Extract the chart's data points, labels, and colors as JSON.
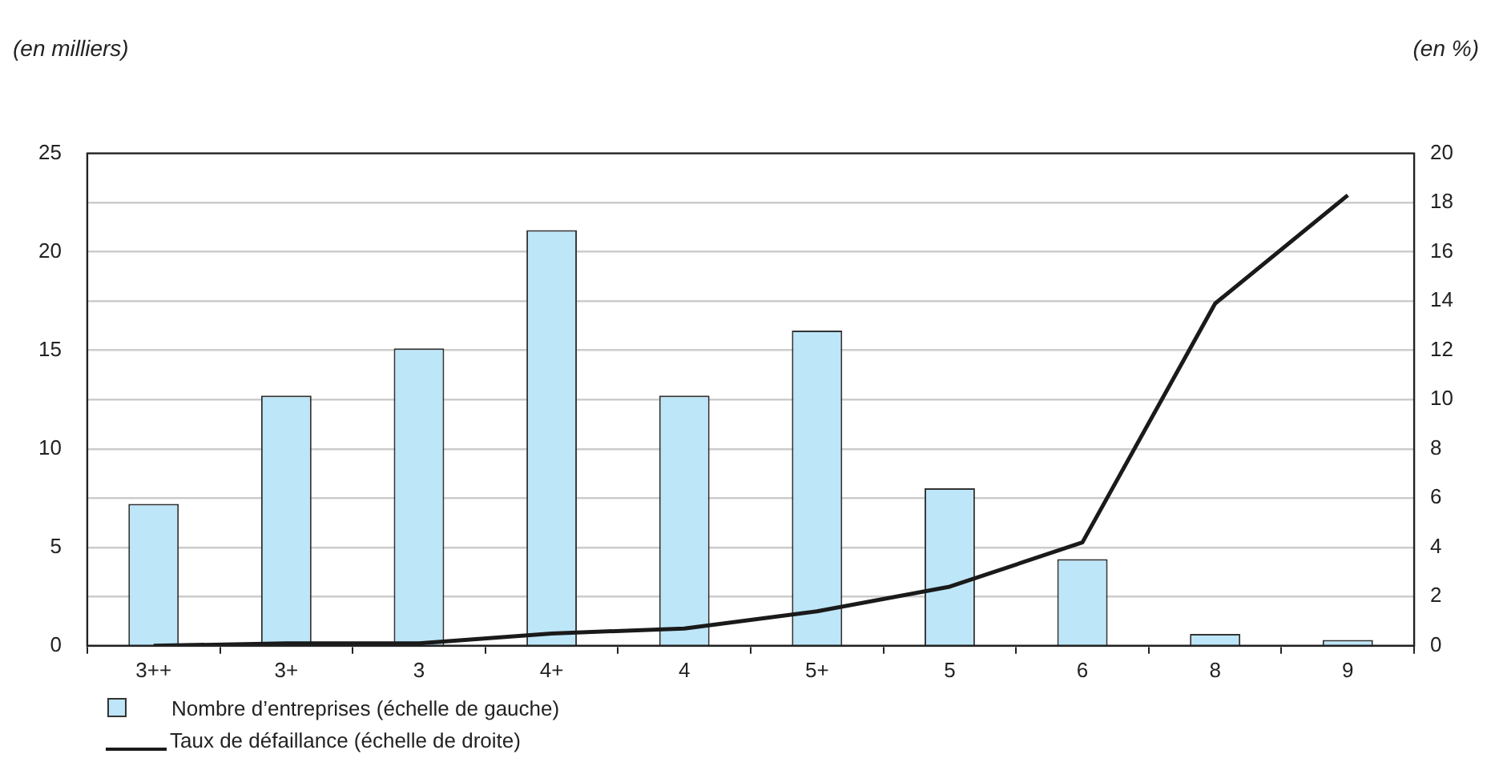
{
  "chart_data": {
    "type": "bar",
    "ylabel": "(en milliers)",
    "y2label": "(en %)",
    "categories": [
      "3++",
      "3+",
      "3",
      "4+",
      "4",
      "5+",
      "5",
      "6",
      "8",
      "9"
    ],
    "series": [
      {
        "name": "Nombre d’entreprises (échelle de gauche)",
        "color": "#bde6f8",
        "values": [
          7.2,
          12.7,
          15.1,
          21.1,
          12.7,
          16.0,
          8.0,
          4.4,
          0.6,
          0.3
        ]
      },
      {
        "name": "Taux de défaillance (échelle de droite)",
        "type": "line",
        "axis": "y2",
        "color": "#1a1a1a",
        "values": [
          0,
          0.1,
          0.1,
          0.5,
          0.7,
          1.4,
          2.4,
          4.2,
          13.9,
          18.3
        ]
      }
    ],
    "ylim": [
      0,
      25
    ],
    "yticks": [
      0,
      5,
      10,
      15,
      20,
      25
    ],
    "y2lim": [
      0,
      20
    ],
    "y2ticks": [
      0,
      2,
      4,
      6,
      8,
      10,
      12,
      14,
      16,
      18,
      20
    ],
    "grid": true,
    "legend": "bottom left",
    "marker": "none"
  }
}
